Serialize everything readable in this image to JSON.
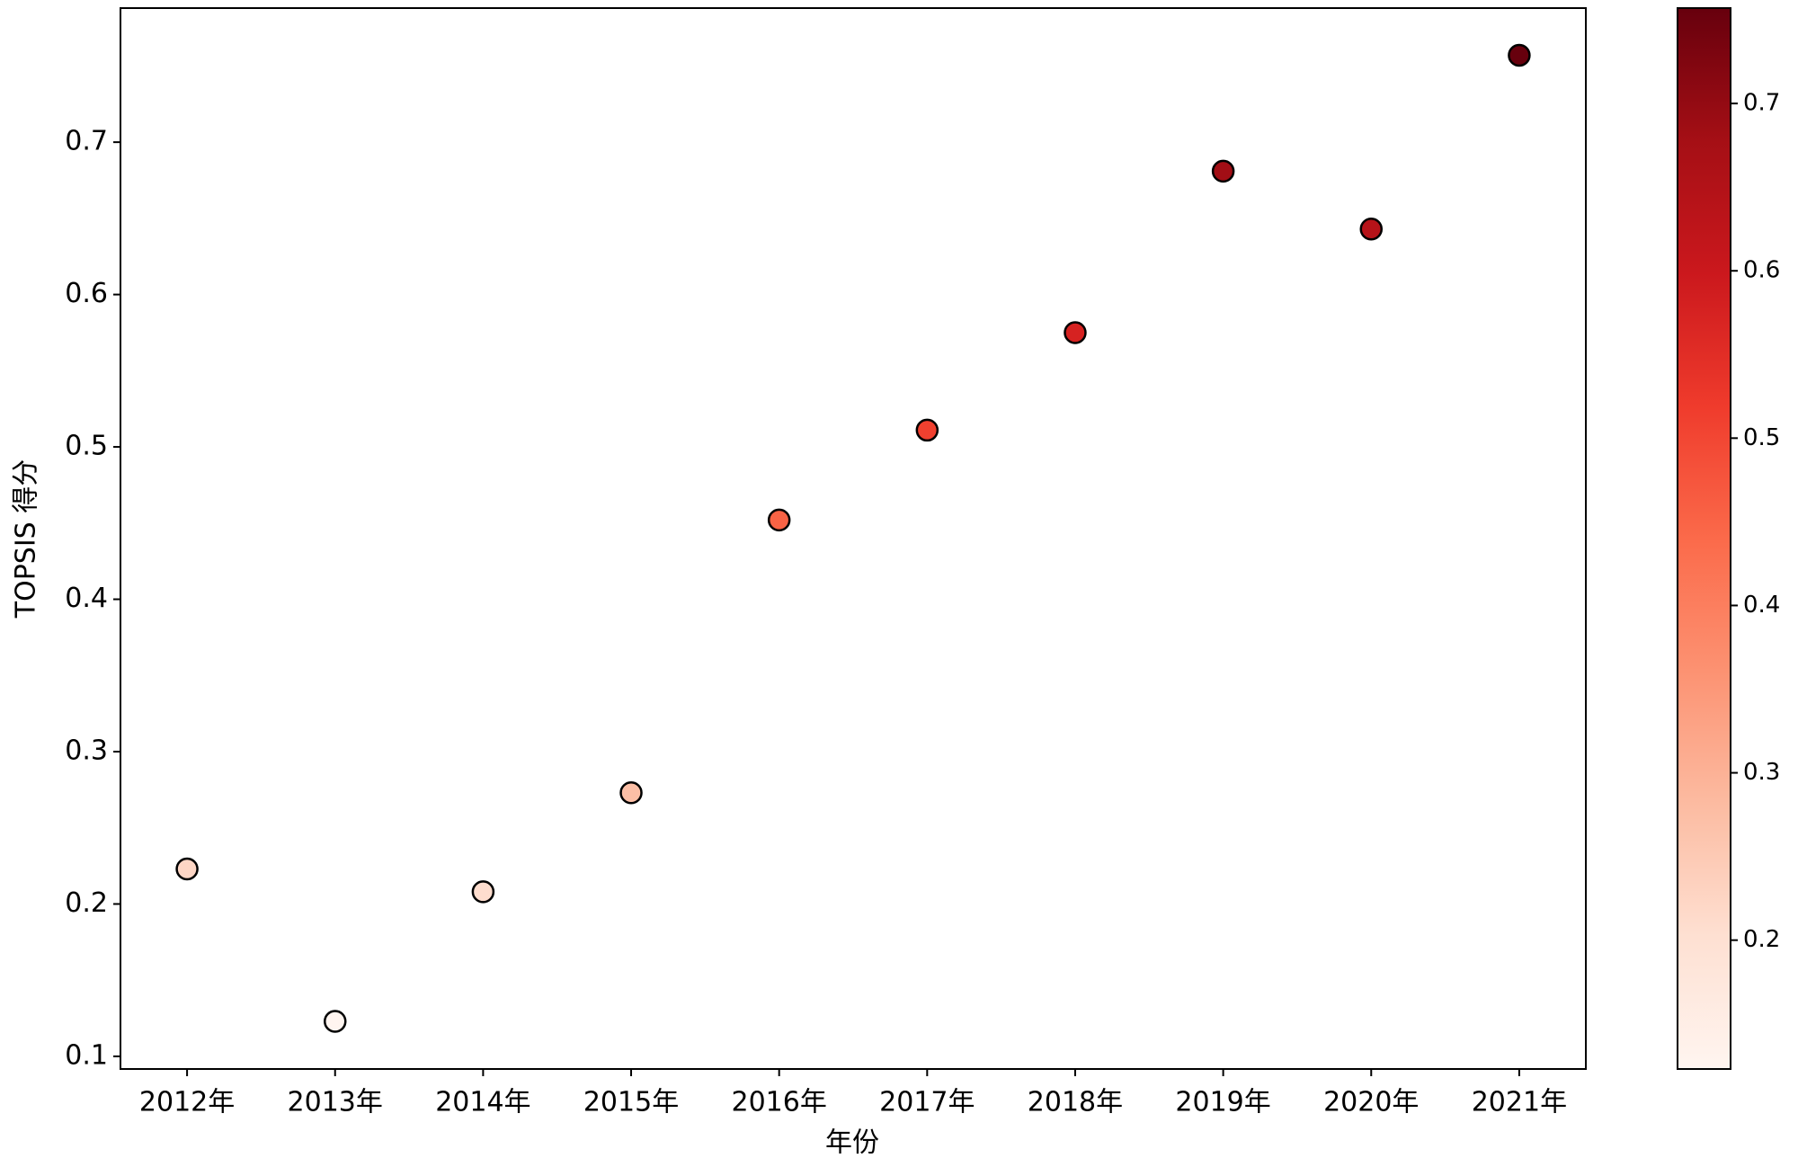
{
  "chart_data": {
    "type": "scatter",
    "xlabel": "年份",
    "ylabel": "TOPSIS 得分",
    "categories": [
      "2012年",
      "2013年",
      "2014年",
      "2015年",
      "2016年",
      "2017年",
      "2018年",
      "2019年",
      "2020年",
      "2021年"
    ],
    "values": [
      0.223,
      0.123,
      0.208,
      0.273,
      0.452,
      0.511,
      0.575,
      0.681,
      0.643,
      0.757
    ],
    "ylim": [
      0.0917,
      0.788
    ],
    "yticks": [
      0.1,
      0.2,
      0.3,
      0.4,
      0.5,
      0.6,
      0.7
    ],
    "colormap": "Reds",
    "colorbar_lim": [
      0.123,
      0.757
    ],
    "colorbar_ticks": [
      0.2,
      0.3,
      0.4,
      0.5,
      0.6,
      0.7
    ],
    "marker_edge_color": "#000000"
  }
}
